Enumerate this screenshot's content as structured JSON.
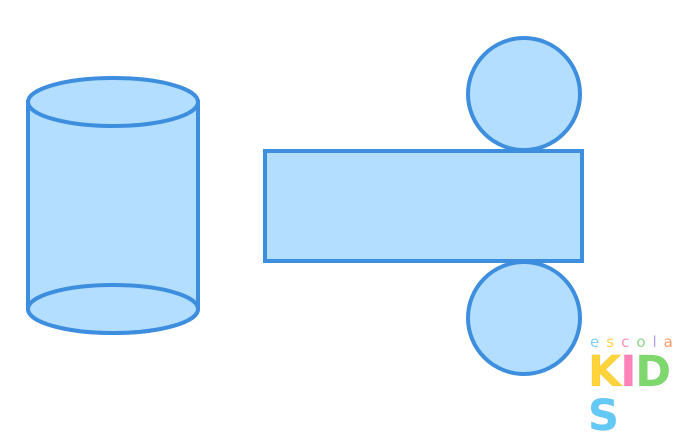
{
  "colors": {
    "fill": "#b3deff",
    "stroke": "#3e8ee0",
    "background": "#ffffff"
  },
  "shapes": {
    "solid": "cylinder",
    "net": [
      "top-circle-face",
      "lateral-rectangle",
      "bottom-circle-face"
    ]
  },
  "logo": {
    "top_text": "escola",
    "bottom_text": "KIDS",
    "top_letter_colors": [
      "#7fd3f2",
      "#ffd54a",
      "#ff8fbf",
      "#8ad98a",
      "#b79ae8",
      "#ff9966"
    ],
    "bottom_letter_colors": [
      "#ffd43b",
      "#ff82b8",
      "#7fd86d",
      "#62c9f4"
    ]
  }
}
